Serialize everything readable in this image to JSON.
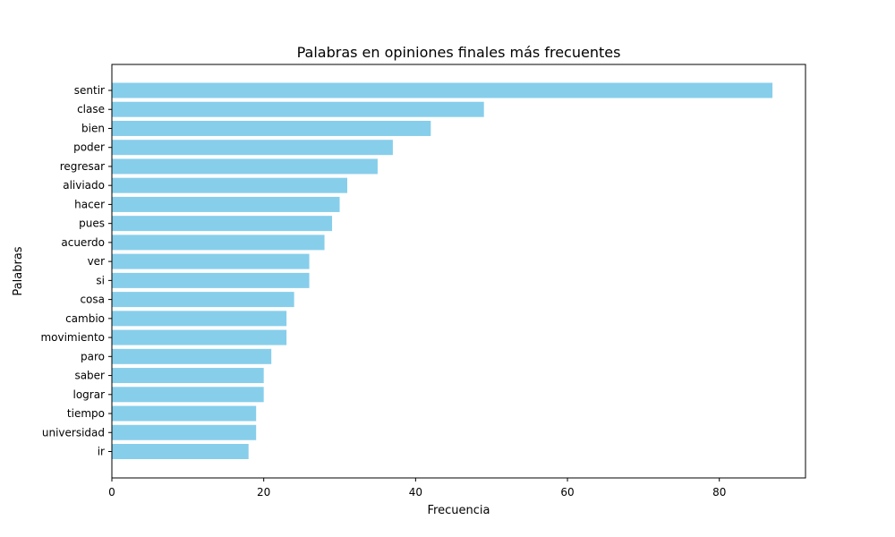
{
  "chart_data": {
    "type": "bar",
    "orientation": "horizontal",
    "title": "Palabras en opiniones finales más frecuentes",
    "xlabel": "Frecuencia",
    "ylabel": "Palabras",
    "categories": [
      "sentir",
      "clase",
      "bien",
      "poder",
      "regresar",
      "aliviado",
      "hacer",
      "pues",
      "acuerdo",
      "ver",
      "si",
      "cosa",
      "cambio",
      "movimiento",
      "paro",
      "saber",
      "lograr",
      "tiempo",
      "universidad",
      "ir"
    ],
    "values": [
      87,
      49,
      42,
      37,
      35,
      31,
      30,
      29,
      28,
      26,
      26,
      24,
      23,
      23,
      21,
      20,
      20,
      19,
      19,
      18
    ],
    "xlim": [
      0,
      91.35
    ],
    "xticks": [
      0,
      20,
      40,
      60,
      80
    ],
    "bar_color": "#87CEEB",
    "grid": false
  }
}
